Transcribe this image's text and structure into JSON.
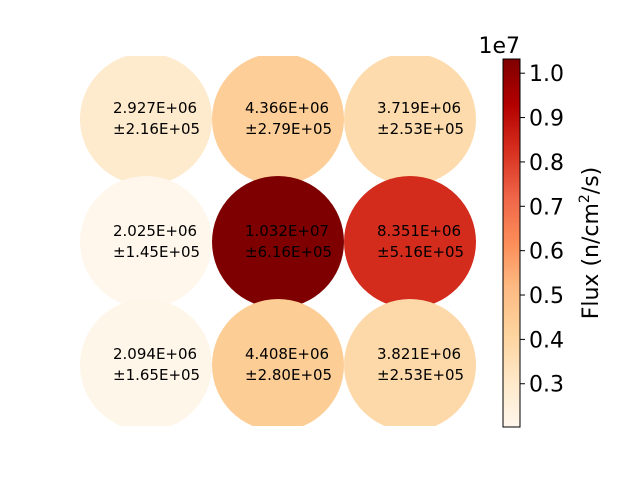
{
  "chart_data": {
    "type": "heatmap",
    "rows": 3,
    "cols": 3,
    "cells": [
      {
        "row": 0,
        "col": 0,
        "value": 2927000,
        "label": "2.927E+06",
        "error": "±2.16E+05"
      },
      {
        "row": 0,
        "col": 1,
        "value": 4366000,
        "label": "4.366E+06",
        "error": "±2.79E+05"
      },
      {
        "row": 0,
        "col": 2,
        "value": 3719000,
        "label": "3.719E+06",
        "error": "±2.53E+05"
      },
      {
        "row": 1,
        "col": 0,
        "value": 2025000,
        "label": "2.025E+06",
        "error": "±1.45E+05"
      },
      {
        "row": 1,
        "col": 1,
        "value": 10320000,
        "label": "1.032E+07",
        "error": "±6.16E+05"
      },
      {
        "row": 1,
        "col": 2,
        "value": 8351000,
        "label": "8.351E+06",
        "error": "±5.16E+05"
      },
      {
        "row": 2,
        "col": 0,
        "value": 2094000,
        "label": "2.094E+06",
        "error": "±1.65E+05"
      },
      {
        "row": 2,
        "col": 1,
        "value": 4408000,
        "label": "4.408E+06",
        "error": "±2.80E+05"
      },
      {
        "row": 2,
        "col": 2,
        "value": 3821000,
        "label": "3.821E+06",
        "error": "±2.53E+05"
      }
    ],
    "colorbar": {
      "label_prefix": "Flux (n/cm",
      "label_sup": "2",
      "label_suffix": "/s)",
      "multiplier": "1e7",
      "min": 0.2025,
      "max": 1.032,
      "ticks": [
        0.3,
        0.4,
        0.5,
        0.6,
        0.7,
        0.8,
        0.9,
        1.0
      ],
      "tick_labels": [
        "0.3",
        "0.4",
        "0.5",
        "0.6",
        "0.7",
        "0.8",
        "0.9",
        "1.0"
      ],
      "colormap": "OrRd",
      "colormap_stops": [
        "#fff7ec",
        "#fee8c8",
        "#fdd49e",
        "#fdbb84",
        "#fc8d59",
        "#ef6548",
        "#d7301f",
        "#b30000",
        "#7f0000"
      ]
    }
  }
}
